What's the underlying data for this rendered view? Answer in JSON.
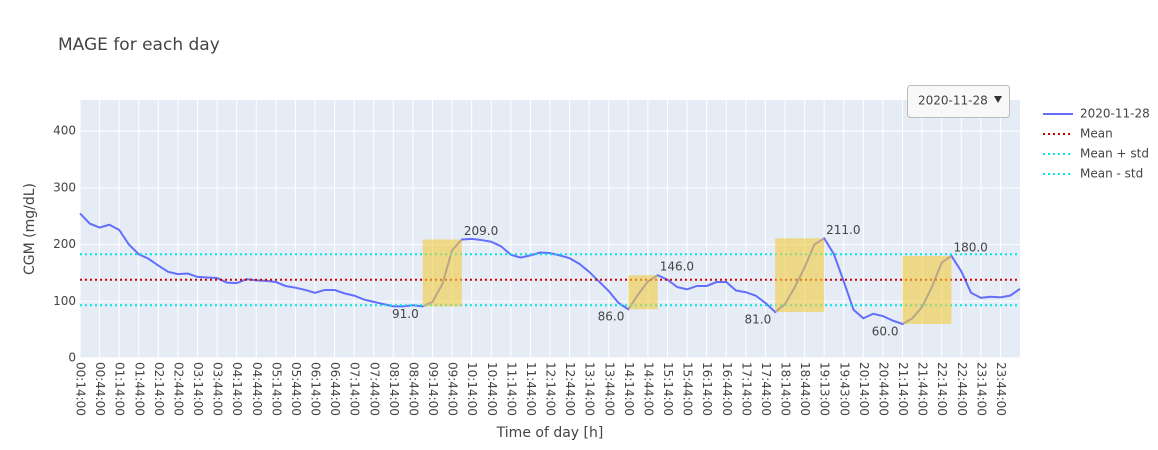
{
  "chart_data": {
    "type": "line",
    "title": "MAGE for each day",
    "xlabel": "Time of day [h]",
    "ylabel": "CGM (mg/dL)",
    "categories": [
      "00:14:00",
      null,
      "00:44:00",
      null,
      "01:14:00",
      null,
      "01:44:00",
      null,
      "02:14:00",
      null,
      "02:44:00",
      null,
      "03:14:00",
      null,
      "03:44:00",
      null,
      "04:14:00",
      null,
      "04:44:00",
      null,
      "05:14:00",
      null,
      "05:44:00",
      null,
      "06:14:00",
      null,
      "06:44:00",
      null,
      "07:14:00",
      null,
      "07:44:00",
      null,
      "08:14:00",
      null,
      "08:44:00",
      null,
      "09:14:00",
      null,
      "09:44:00",
      null,
      "10:14:00",
      null,
      "10:44:00",
      null,
      "11:14:00",
      null,
      "11:44:00",
      null,
      "12:14:00",
      null,
      "12:44:00",
      null,
      "13:14:00",
      null,
      "13:44:00",
      null,
      "14:14:00",
      null,
      "14:44:00",
      null,
      "15:14:00",
      null,
      "15:44:00",
      null,
      "16:14:00",
      null,
      "16:44:00",
      null,
      "17:14:00",
      null,
      "17:44:00",
      null,
      "18:14:00",
      null,
      "18:44:00",
      null,
      "19:13:00",
      null,
      "19:43:00",
      null,
      "20:14:00",
      null,
      "20:44:00",
      null,
      "21:14:00",
      null,
      "21:44:00",
      null,
      "22:14:00",
      null,
      "22:44:00",
      null,
      "23:14:00",
      null,
      "23:44:00",
      null,
      null
    ],
    "xlim": [
      0,
      96
    ],
    "ylim": [
      0,
      455
    ],
    "yticks": [
      0,
      100,
      200,
      300,
      400
    ],
    "grid": true,
    "series": [
      {
        "name": "2020-11-28",
        "color": "#636efa",
        "values": [
          255,
          237,
          230,
          235,
          226,
          200,
          183,
          175,
          163,
          152,
          148,
          149,
          143,
          142,
          141,
          133,
          132,
          139,
          137,
          136,
          134,
          127,
          124,
          120,
          115,
          120,
          120,
          114,
          110,
          103,
          99,
          95,
          91,
          91,
          93,
          91,
          99,
          130,
          190,
          209,
          210,
          208,
          205,
          197,
          182,
          177,
          181,
          186,
          185,
          181,
          176,
          166,
          152,
          135,
          118,
          97,
          86,
          112,
          135,
          146,
          138,
          125,
          121,
          127,
          127,
          134,
          134,
          119,
          116,
          110,
          97,
          81,
          95,
          125,
          160,
          200,
          211,
          183,
          135,
          85,
          70,
          78,
          74,
          66,
          60,
          70,
          90,
          125,
          168,
          180,
          153,
          115,
          106,
          108,
          107,
          110,
          122
        ]
      }
    ],
    "hlines": [
      {
        "name": "Mean",
        "color": "#cc0000",
        "value": 138
      },
      {
        "name": "Mean + std",
        "color": "#00e5e5",
        "value": 183
      },
      {
        "name": "Mean - std",
        "color": "#00e5e5",
        "value": 93
      }
    ],
    "extrema": {
      "indices": [
        35,
        39,
        56,
        59,
        71,
        76,
        84,
        89
      ],
      "values": [
        91,
        209,
        86,
        146,
        81,
        211,
        60,
        180
      ],
      "value_labels": [
        "91.0",
        "209.0",
        "86.0",
        "146.0",
        "81.0",
        "211.0",
        "60.0",
        "180.0"
      ],
      "color": "#f2cc3d"
    },
    "legend": "right",
    "dropdown": {
      "selected": "2020-11-28"
    }
  }
}
